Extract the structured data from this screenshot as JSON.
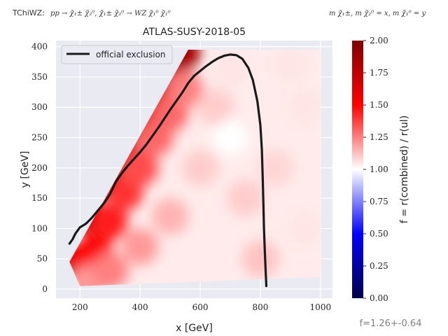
{
  "header": {
    "topology_label": "TChiWZ:",
    "process": "pp → χ̃₁± χ̃₂⁰, χ̃₁± χ̃₂⁰ → WZ χ̃₁⁰ χ̃₁⁰",
    "mass_relation": "m χ̃₁±, m χ̃₂⁰ = x, m χ̃₁⁰ = y"
  },
  "footer": {
    "ratio_summary": "f=1.26+-0.64"
  },
  "colors": {
    "axes_bg": "#eaeaf2",
    "grid": "#ffffff",
    "exclusion_line": "#1a1a1a",
    "annotation_text": "#808080"
  },
  "chart_data": {
    "type": "heatmap",
    "title": "ATLAS-SUSY-2018-05",
    "xlabel": "x [GeV]",
    "ylabel": "y [GeV]",
    "xlim": [
      120,
      1040
    ],
    "ylim": [
      -15,
      410
    ],
    "xticks": [
      200,
      400,
      600,
      800,
      1000
    ],
    "yticks": [
      0,
      50,
      100,
      150,
      200,
      250,
      300,
      350,
      400
    ],
    "xtick_labels": [
      "200",
      "400",
      "600",
      "800",
      "1000"
    ],
    "ytick_labels": [
      "0",
      "50",
      "100",
      "150",
      "200",
      "250",
      "300",
      "350",
      "400"
    ],
    "grid": true,
    "legend": {
      "position": "top-left",
      "entries": [
        "official exclusion"
      ]
    },
    "colorbar": {
      "label": "f = r(combined) / r(ul)",
      "range": [
        0.0,
        2.0
      ],
      "ticks": [
        0.0,
        0.25,
        0.5,
        0.75,
        1.0,
        1.25,
        1.5,
        1.75,
        2.0
      ],
      "tick_labels": [
        "0.00",
        "0.25",
        "0.50",
        "0.75",
        "1.00",
        "1.25",
        "1.50",
        "1.75",
        "2.00"
      ],
      "colormap": "seismic"
    },
    "heatmap_region": {
      "polygon": [
        [
          165,
          45
        ],
        [
          200,
          5
        ],
        [
          1000,
          20
        ],
        [
          1000,
          395
        ],
        [
          560,
          395
        ]
      ]
    },
    "heatmap_points": [
      {
        "x": 180,
        "y": 45,
        "f": 1.6
      },
      {
        "x": 230,
        "y": 120,
        "f": 1.7
      },
      {
        "x": 280,
        "y": 180,
        "f": 1.8
      },
      {
        "x": 330,
        "y": 230,
        "f": 1.75
      },
      {
        "x": 380,
        "y": 280,
        "f": 1.7
      },
      {
        "x": 430,
        "y": 320,
        "f": 1.75
      },
      {
        "x": 480,
        "y": 350,
        "f": 1.7
      },
      {
        "x": 540,
        "y": 390,
        "f": 1.85
      },
      {
        "x": 250,
        "y": 60,
        "f": 1.5
      },
      {
        "x": 300,
        "y": 110,
        "f": 1.45
      },
      {
        "x": 350,
        "y": 160,
        "f": 1.4
      },
      {
        "x": 400,
        "y": 200,
        "f": 1.35
      },
      {
        "x": 450,
        "y": 250,
        "f": 1.3
      },
      {
        "x": 500,
        "y": 290,
        "f": 1.3
      },
      {
        "x": 550,
        "y": 330,
        "f": 1.25
      },
      {
        "x": 230,
        "y": 10,
        "f": 1.2
      },
      {
        "x": 300,
        "y": 30,
        "f": 1.25
      },
      {
        "x": 400,
        "y": 70,
        "f": 1.2
      },
      {
        "x": 500,
        "y": 120,
        "f": 1.15
      },
      {
        "x": 600,
        "y": 200,
        "f": 1.1
      },
      {
        "x": 650,
        "y": 300,
        "f": 1.1
      },
      {
        "x": 700,
        "y": 360,
        "f": 1.05
      },
      {
        "x": 800,
        "y": 50,
        "f": 1.12
      },
      {
        "x": 850,
        "y": 200,
        "f": 1.08
      },
      {
        "x": 950,
        "y": 100,
        "f": 1.05
      },
      {
        "x": 950,
        "y": 300,
        "f": 1.05
      },
      {
        "x": 750,
        "y": 150,
        "f": 1.1
      },
      {
        "x": 700,
        "y": 250,
        "f": 1.0
      },
      {
        "x": 900,
        "y": 370,
        "f": 1.05
      }
    ],
    "series": [
      {
        "name": "official exclusion",
        "x": [
          165,
          175,
          185,
          200,
          220,
          240,
          260,
          280,
          300,
          320,
          340,
          360,
          380,
          400,
          420,
          440,
          460,
          480,
          500,
          520,
          540,
          560,
          580,
          600,
          620,
          640,
          660,
          680,
          700,
          720,
          740,
          760,
          775,
          790,
          800,
          805,
          808,
          810,
          812,
          815,
          818,
          820
        ],
        "y": [
          75,
          82,
          92,
          102,
          108,
          118,
          130,
          142,
          157,
          178,
          192,
          204,
          215,
          226,
          238,
          252,
          266,
          281,
          296,
          310,
          324,
          340,
          352,
          360,
          368,
          375,
          381,
          385,
          387,
          386,
          380,
          365,
          345,
          310,
          270,
          230,
          180,
          140,
          100,
          60,
          25,
          5
        ]
      }
    ]
  }
}
